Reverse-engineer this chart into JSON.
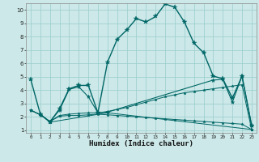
{
  "xlabel": "Humidex (Indice chaleur)",
  "bg_color": "#cce8e8",
  "grid_color": "#99cccc",
  "line_color": "#006666",
  "xlim": [
    -0.5,
    23.5
  ],
  "ylim": [
    0.8,
    10.5
  ],
  "yticks": [
    1,
    2,
    3,
    4,
    5,
    6,
    7,
    8,
    9,
    10
  ],
  "xticks": [
    0,
    1,
    2,
    3,
    4,
    5,
    6,
    7,
    8,
    9,
    10,
    11,
    12,
    13,
    14,
    15,
    16,
    17,
    18,
    19,
    20,
    21,
    22,
    23
  ],
  "curve1_x": [
    0,
    1,
    2,
    3,
    4,
    5,
    6,
    7,
    8,
    9,
    10,
    11,
    12,
    13,
    14,
    15,
    16,
    17,
    18,
    19,
    20,
    21,
    22,
    23
  ],
  "curve1_y": [
    4.8,
    2.2,
    1.6,
    2.6,
    4.1,
    4.35,
    4.35,
    2.3,
    6.1,
    7.8,
    8.5,
    9.35,
    9.1,
    9.5,
    10.45,
    10.2,
    9.1,
    7.5,
    6.8,
    5.05,
    4.85,
    3.4,
    5.05,
    1.35
  ],
  "curve2_x": [
    1,
    2,
    8,
    23
  ],
  "curve2_y": [
    2.2,
    1.6,
    2.3,
    1.05
  ],
  "curve3_x": [
    0,
    1,
    2,
    3,
    4,
    5,
    6,
    7,
    8,
    19,
    20,
    21,
    22,
    23
  ],
  "curve3_y": [
    2.5,
    2.15,
    1.65,
    2.5,
    4.05,
    4.25,
    3.5,
    2.3,
    2.35,
    4.75,
    4.8,
    3.1,
    5.05,
    1.35
  ],
  "curve4_x": [
    0,
    1,
    2,
    3,
    4,
    5,
    6,
    7,
    8,
    9,
    10,
    11,
    12,
    13,
    14,
    15,
    16,
    17,
    18,
    19,
    20,
    21,
    22,
    23
  ],
  "curve4_y": [
    2.5,
    2.15,
    1.65,
    2.1,
    2.2,
    2.25,
    2.3,
    2.3,
    2.4,
    2.55,
    2.7,
    2.9,
    3.1,
    3.3,
    3.5,
    3.65,
    3.8,
    3.9,
    4.0,
    4.1,
    4.2,
    4.3,
    4.4,
    1.05
  ],
  "curve5_x": [
    0,
    1,
    2,
    3,
    4,
    5,
    6,
    7,
    8,
    9,
    10,
    11,
    12,
    13,
    14,
    15,
    16,
    17,
    18,
    19,
    20,
    21,
    22,
    23
  ],
  "curve5_y": [
    2.5,
    2.15,
    1.65,
    2.05,
    2.1,
    2.1,
    2.15,
    2.2,
    2.15,
    2.1,
    2.05,
    2.0,
    1.95,
    1.9,
    1.85,
    1.8,
    1.75,
    1.7,
    1.65,
    1.6,
    1.55,
    1.5,
    1.45,
    1.05
  ]
}
